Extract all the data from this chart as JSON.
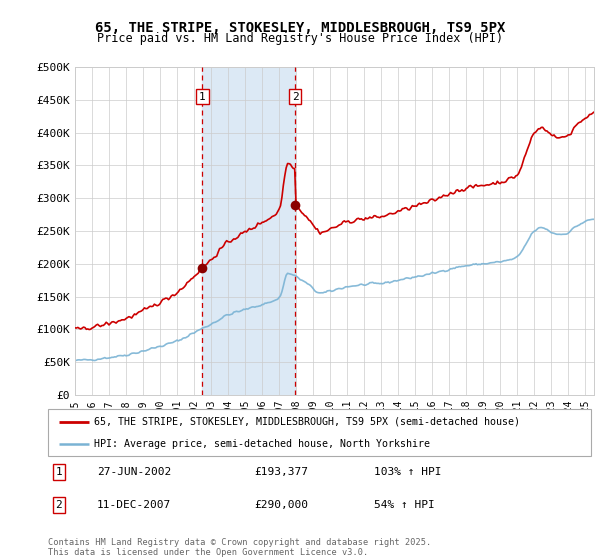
{
  "title_line1": "65, THE STRIPE, STOKESLEY, MIDDLESBROUGH, TS9 5PX",
  "title_line2": "Price paid vs. HM Land Registry's House Price Index (HPI)",
  "ylim": [
    0,
    500000
  ],
  "yticks": [
    0,
    50000,
    100000,
    150000,
    200000,
    250000,
    300000,
    350000,
    400000,
    450000,
    500000
  ],
  "ytick_labels": [
    "£0",
    "£50K",
    "£100K",
    "£150K",
    "£200K",
    "£250K",
    "£300K",
    "£350K",
    "£400K",
    "£450K",
    "£500K"
  ],
  "xlim_left": 1995.0,
  "xlim_right": 2025.5,
  "sale1_date": 2002.49,
  "sale1_price": 193377,
  "sale2_date": 2007.94,
  "sale2_price": 290000,
  "shade_color": "#dce9f5",
  "line1_color": "#cc0000",
  "line2_color": "#7ab3d4",
  "marker_color": "#8b0000",
  "vline_color": "#cc0000",
  "legend1_label": "65, THE STRIPE, STOKESLEY, MIDDLESBROUGH, TS9 5PX (semi-detached house)",
  "legend2_label": "HPI: Average price, semi-detached house, North Yorkshire",
  "ann1_label": "1",
  "ann2_label": "2",
  "ann1_date_str": "27-JUN-2002",
  "ann1_price_str": "£193,377",
  "ann1_hpi_str": "103% ↑ HPI",
  "ann2_date_str": "11-DEC-2007",
  "ann2_price_str": "£290,000",
  "ann2_hpi_str": "54% ↑ HPI",
  "footer": "Contains HM Land Registry data © Crown copyright and database right 2025.\nThis data is licensed under the Open Government Licence v3.0.",
  "background_color": "#ffffff"
}
